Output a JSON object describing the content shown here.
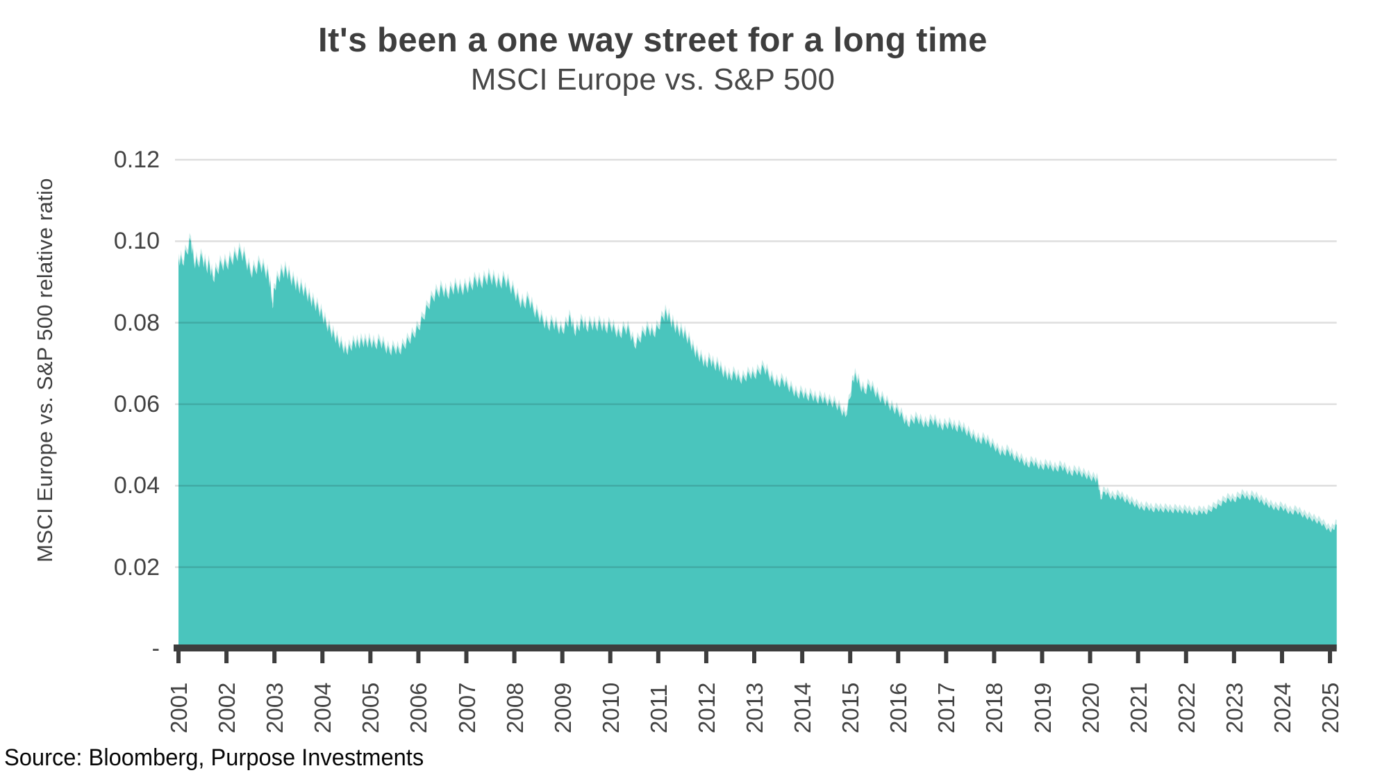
{
  "header": {
    "title": "It's been a one way street for a long time",
    "subtitle": "MSCI Europe vs. S&P 500"
  },
  "source": "Source: Bloomberg, Purpose Investments",
  "chart_data": {
    "type": "area",
    "title": "It's been a one way street for a long time",
    "subtitle": "MSCI Europe vs. S&P 500",
    "xlabel": "",
    "ylabel": "MSCI Europe vs. S&P 500 relative ratio",
    "xlim": [
      2001,
      2025.14
    ],
    "ylim": [
      0,
      0.12
    ],
    "grid": true,
    "legend": false,
    "x_ticks": [
      2001,
      2002,
      2003,
      2004,
      2005,
      2006,
      2007,
      2008,
      2009,
      2010,
      2011,
      2012,
      2013,
      2014,
      2015,
      2016,
      2017,
      2018,
      2019,
      2020,
      2021,
      2022,
      2023,
      2024,
      2025
    ],
    "y_ticks": [
      {
        "label": "0.12",
        "value": 0.12
      },
      {
        "label": "0.10",
        "value": 0.1
      },
      {
        "label": "0.08",
        "value": 0.08
      },
      {
        "label": "0.06",
        "value": 0.06
      },
      {
        "label": "0.04",
        "value": 0.04
      },
      {
        "label": "0.02",
        "value": 0.02
      },
      {
        "label": "-",
        "value": 0
      }
    ],
    "colors": {
      "area": "#4ac5bd",
      "area_fringe": "#c8ebe8",
      "gridline": "rgba(0,0,0,0.13)",
      "axis": "#3d3d3d",
      "text": "#3f3f3f"
    },
    "series": [
      {
        "name": "MSCI Europe / S&P 500 relative ratio",
        "points": [
          [
            2001.0,
            0.0958
          ],
          [
            2001.08,
            0.0945
          ],
          [
            2001.17,
            0.0972
          ],
          [
            2001.26,
            0.1
          ],
          [
            2001.32,
            0.0948
          ],
          [
            2001.4,
            0.0945
          ],
          [
            2001.5,
            0.0958
          ],
          [
            2001.58,
            0.0932
          ],
          [
            2001.65,
            0.094
          ],
          [
            2001.72,
            0.0905
          ],
          [
            2001.8,
            0.0928
          ],
          [
            2001.9,
            0.0942
          ],
          [
            2002.0,
            0.094
          ],
          [
            2002.1,
            0.0952
          ],
          [
            2002.2,
            0.0962
          ],
          [
            2002.3,
            0.0972
          ],
          [
            2002.4,
            0.0952
          ],
          [
            2002.5,
            0.0922
          ],
          [
            2002.6,
            0.0928
          ],
          [
            2002.7,
            0.0942
          ],
          [
            2002.8,
            0.0925
          ],
          [
            2002.88,
            0.0912
          ],
          [
            2002.93,
            0.0875
          ],
          [
            2002.96,
            0.0835
          ],
          [
            2003.0,
            0.0885
          ],
          [
            2003.08,
            0.0908
          ],
          [
            2003.17,
            0.0922
          ],
          [
            2003.25,
            0.0925
          ],
          [
            2003.33,
            0.0908
          ],
          [
            2003.42,
            0.0895
          ],
          [
            2003.5,
            0.0885
          ],
          [
            2003.58,
            0.0882
          ],
          [
            2003.67,
            0.0868
          ],
          [
            2003.75,
            0.0855
          ],
          [
            2003.83,
            0.0845
          ],
          [
            2003.92,
            0.0832
          ],
          [
            2004.0,
            0.0815
          ],
          [
            2004.08,
            0.0795
          ],
          [
            2004.17,
            0.0778
          ],
          [
            2004.25,
            0.0765
          ],
          [
            2004.33,
            0.0752
          ],
          [
            2004.42,
            0.0738
          ],
          [
            2004.5,
            0.0728
          ],
          [
            2004.58,
            0.0738
          ],
          [
            2004.67,
            0.0748
          ],
          [
            2004.75,
            0.0745
          ],
          [
            2004.83,
            0.0752
          ],
          [
            2004.92,
            0.0748
          ],
          [
            2005.0,
            0.0752
          ],
          [
            2005.1,
            0.0742
          ],
          [
            2005.2,
            0.0752
          ],
          [
            2005.3,
            0.0738
          ],
          [
            2005.4,
            0.0728
          ],
          [
            2005.5,
            0.0735
          ],
          [
            2005.6,
            0.0728
          ],
          [
            2005.7,
            0.0742
          ],
          [
            2005.8,
            0.0755
          ],
          [
            2005.9,
            0.0768
          ],
          [
            2006.0,
            0.0785
          ],
          [
            2006.1,
            0.081
          ],
          [
            2006.2,
            0.0838
          ],
          [
            2006.3,
            0.086
          ],
          [
            2006.4,
            0.0872
          ],
          [
            2006.5,
            0.088
          ],
          [
            2006.6,
            0.0866
          ],
          [
            2006.7,
            0.088
          ],
          [
            2006.8,
            0.0885
          ],
          [
            2006.9,
            0.0878
          ],
          [
            2007.0,
            0.0885
          ],
          [
            2007.1,
            0.0888
          ],
          [
            2007.2,
            0.0902
          ],
          [
            2007.3,
            0.0894
          ],
          [
            2007.4,
            0.0904
          ],
          [
            2007.5,
            0.0908
          ],
          [
            2007.6,
            0.09
          ],
          [
            2007.7,
            0.0893
          ],
          [
            2007.8,
            0.0904
          ],
          [
            2007.9,
            0.0888
          ],
          [
            2008.0,
            0.0872
          ],
          [
            2008.1,
            0.0852
          ],
          [
            2008.2,
            0.0842
          ],
          [
            2008.3,
            0.0856
          ],
          [
            2008.4,
            0.0828
          ],
          [
            2008.5,
            0.0816
          ],
          [
            2008.6,
            0.0802
          ],
          [
            2008.7,
            0.0788
          ],
          [
            2008.8,
            0.0798
          ],
          [
            2008.9,
            0.0786
          ],
          [
            2009.0,
            0.0778
          ],
          [
            2009.1,
            0.0795
          ],
          [
            2009.17,
            0.0812
          ],
          [
            2009.25,
            0.0775
          ],
          [
            2009.33,
            0.0785
          ],
          [
            2009.42,
            0.0802
          ],
          [
            2009.5,
            0.0785
          ],
          [
            2009.6,
            0.0795
          ],
          [
            2009.7,
            0.0788
          ],
          [
            2009.8,
            0.0795
          ],
          [
            2009.9,
            0.0782
          ],
          [
            2010.0,
            0.0792
          ],
          [
            2010.1,
            0.0778
          ],
          [
            2010.2,
            0.0768
          ],
          [
            2010.3,
            0.0784
          ],
          [
            2010.4,
            0.0778
          ],
          [
            2010.5,
            0.0742
          ],
          [
            2010.6,
            0.0756
          ],
          [
            2010.7,
            0.0774
          ],
          [
            2010.8,
            0.0782
          ],
          [
            2010.9,
            0.077
          ],
          [
            2011.0,
            0.0786
          ],
          [
            2011.1,
            0.0812
          ],
          [
            2011.17,
            0.0822
          ],
          [
            2011.25,
            0.0804
          ],
          [
            2011.33,
            0.079
          ],
          [
            2011.42,
            0.0778
          ],
          [
            2011.5,
            0.0775
          ],
          [
            2011.58,
            0.0765
          ],
          [
            2011.67,
            0.0748
          ],
          [
            2011.75,
            0.0728
          ],
          [
            2011.83,
            0.0718
          ],
          [
            2011.92,
            0.0706
          ],
          [
            2012.0,
            0.0695
          ],
          [
            2012.08,
            0.0708
          ],
          [
            2012.17,
            0.069
          ],
          [
            2012.25,
            0.0695
          ],
          [
            2012.33,
            0.0678
          ],
          [
            2012.42,
            0.067
          ],
          [
            2012.5,
            0.0665
          ],
          [
            2012.6,
            0.0672
          ],
          [
            2012.7,
            0.0658
          ],
          [
            2012.8,
            0.0662
          ],
          [
            2012.9,
            0.0672
          ],
          [
            2013.0,
            0.0668
          ],
          [
            2013.1,
            0.0678
          ],
          [
            2013.2,
            0.0688
          ],
          [
            2013.3,
            0.067
          ],
          [
            2013.4,
            0.0655
          ],
          [
            2013.5,
            0.0648
          ],
          [
            2013.6,
            0.0656
          ],
          [
            2013.7,
            0.0642
          ],
          [
            2013.8,
            0.0632
          ],
          [
            2013.9,
            0.062
          ],
          [
            2014.0,
            0.0626
          ],
          [
            2014.1,
            0.0615
          ],
          [
            2014.2,
            0.0619
          ],
          [
            2014.3,
            0.0608
          ],
          [
            2014.4,
            0.0613
          ],
          [
            2014.5,
            0.0605
          ],
          [
            2014.6,
            0.0602
          ],
          [
            2014.7,
            0.0597
          ],
          [
            2014.8,
            0.0585
          ],
          [
            2014.9,
            0.0568
          ],
          [
            2015.0,
            0.0615
          ],
          [
            2015.06,
            0.066
          ],
          [
            2015.12,
            0.0668
          ],
          [
            2015.2,
            0.0645
          ],
          [
            2015.3,
            0.0628
          ],
          [
            2015.4,
            0.0645
          ],
          [
            2015.5,
            0.063
          ],
          [
            2015.6,
            0.0615
          ],
          [
            2015.7,
            0.0608
          ],
          [
            2015.8,
            0.0596
          ],
          [
            2015.9,
            0.0585
          ],
          [
            2016.0,
            0.0582
          ],
          [
            2016.1,
            0.0565
          ],
          [
            2016.2,
            0.0548
          ],
          [
            2016.3,
            0.0558
          ],
          [
            2016.4,
            0.0562
          ],
          [
            2016.5,
            0.0552
          ],
          [
            2016.6,
            0.0548
          ],
          [
            2016.7,
            0.0558
          ],
          [
            2016.8,
            0.0552
          ],
          [
            2016.9,
            0.0542
          ],
          [
            2017.0,
            0.0546
          ],
          [
            2017.1,
            0.0548
          ],
          [
            2017.2,
            0.0538
          ],
          [
            2017.3,
            0.0542
          ],
          [
            2017.4,
            0.0532
          ],
          [
            2017.5,
            0.0524
          ],
          [
            2017.6,
            0.0515
          ],
          [
            2017.7,
            0.0508
          ],
          [
            2017.8,
            0.0512
          ],
          [
            2017.9,
            0.0502
          ],
          [
            2018.0,
            0.0494
          ],
          [
            2018.1,
            0.0482
          ],
          [
            2018.2,
            0.0478
          ],
          [
            2018.3,
            0.0483
          ],
          [
            2018.4,
            0.0468
          ],
          [
            2018.5,
            0.0465
          ],
          [
            2018.6,
            0.0458
          ],
          [
            2018.7,
            0.0448
          ],
          [
            2018.8,
            0.0456
          ],
          [
            2018.9,
            0.0448
          ],
          [
            2019.0,
            0.0443
          ],
          [
            2019.1,
            0.0448
          ],
          [
            2019.2,
            0.0442
          ],
          [
            2019.3,
            0.0438
          ],
          [
            2019.4,
            0.0445
          ],
          [
            2019.5,
            0.0436
          ],
          [
            2019.6,
            0.0428
          ],
          [
            2019.7,
            0.0433
          ],
          [
            2019.8,
            0.0428
          ],
          [
            2019.9,
            0.0423
          ],
          [
            2020.0,
            0.0418
          ],
          [
            2020.1,
            0.0414
          ],
          [
            2020.16,
            0.0412
          ],
          [
            2020.22,
            0.0366
          ],
          [
            2020.3,
            0.0385
          ],
          [
            2020.4,
            0.0374
          ],
          [
            2020.5,
            0.0368
          ],
          [
            2020.6,
            0.0374
          ],
          [
            2020.7,
            0.0365
          ],
          [
            2020.8,
            0.036
          ],
          [
            2020.9,
            0.0354
          ],
          [
            2021.0,
            0.0348
          ],
          [
            2021.1,
            0.0342
          ],
          [
            2021.2,
            0.0345
          ],
          [
            2021.3,
            0.0338
          ],
          [
            2021.4,
            0.0342
          ],
          [
            2021.5,
            0.0338
          ],
          [
            2021.6,
            0.034
          ],
          [
            2021.7,
            0.0336
          ],
          [
            2021.8,
            0.0339
          ],
          [
            2021.9,
            0.0335
          ],
          [
            2022.0,
            0.0337
          ],
          [
            2022.1,
            0.0333
          ],
          [
            2022.2,
            0.033
          ],
          [
            2022.3,
            0.0336
          ],
          [
            2022.4,
            0.0332
          ],
          [
            2022.5,
            0.0338
          ],
          [
            2022.6,
            0.0345
          ],
          [
            2022.7,
            0.0352
          ],
          [
            2022.8,
            0.036
          ],
          [
            2022.9,
            0.0366
          ],
          [
            2023.0,
            0.0362
          ],
          [
            2023.1,
            0.037
          ],
          [
            2023.2,
            0.0375
          ],
          [
            2023.3,
            0.0368
          ],
          [
            2023.4,
            0.0372
          ],
          [
            2023.5,
            0.0365
          ],
          [
            2023.6,
            0.0358
          ],
          [
            2023.7,
            0.0352
          ],
          [
            2023.8,
            0.0346
          ],
          [
            2023.9,
            0.0342
          ],
          [
            2024.0,
            0.0345
          ],
          [
            2024.1,
            0.0337
          ],
          [
            2024.2,
            0.0332
          ],
          [
            2024.3,
            0.0336
          ],
          [
            2024.4,
            0.0328
          ],
          [
            2024.5,
            0.0322
          ],
          [
            2024.6,
            0.0318
          ],
          [
            2024.7,
            0.0312
          ],
          [
            2024.8,
            0.0308
          ],
          [
            2024.9,
            0.0298
          ],
          [
            2025.0,
            0.0288
          ],
          [
            2025.07,
            0.0292
          ],
          [
            2025.14,
            0.0304
          ]
        ]
      }
    ]
  }
}
